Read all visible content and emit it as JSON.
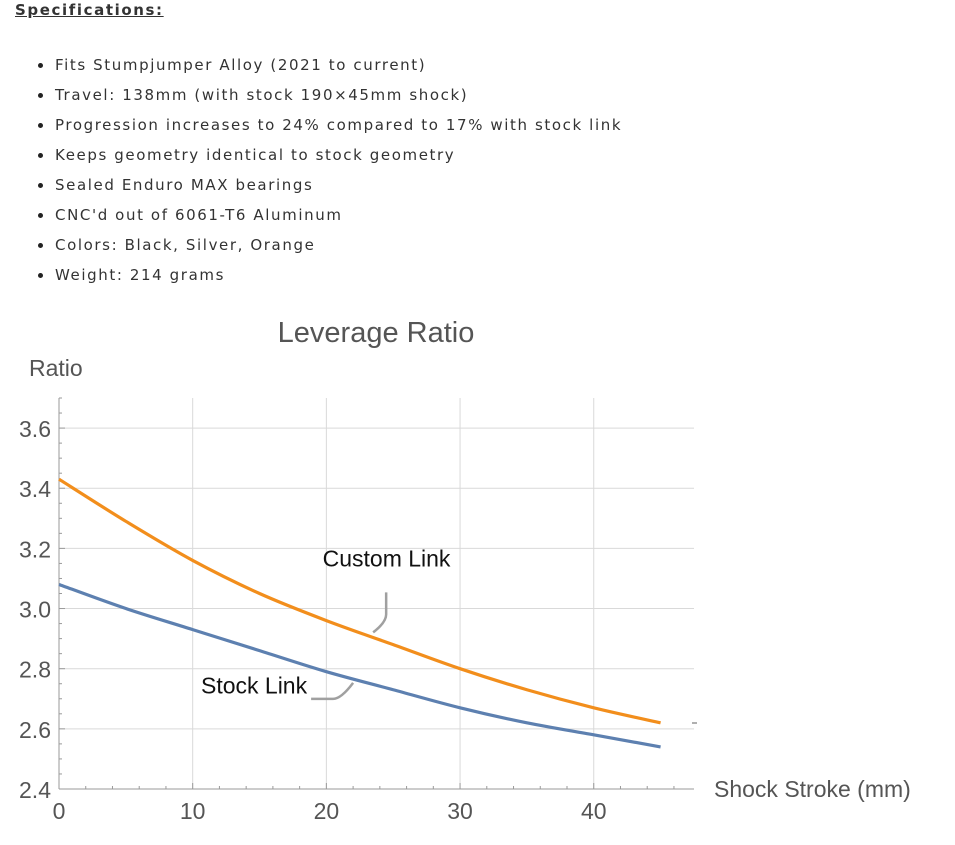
{
  "specs": {
    "heading": "Specifications:",
    "items": [
      "Fits Stumpjumper Alloy (2021 to current)",
      "Travel: 138mm (with stock 190×45mm shock)",
      "Progression increases to 24% compared to 17% with stock link",
      "Keeps geometry identical to stock geometry",
      "Sealed Enduro MAX bearings",
      "CNC'd out of 6061-T6 Aluminum",
      "Colors: Black, Silver, Orange",
      "Weight: 214 grams"
    ]
  },
  "chart_data": {
    "type": "line",
    "title": "Leverage Ratio",
    "xlabel": "Shock Stroke (mm)",
    "ylabel": "Ratio",
    "xlim": [
      0,
      47.5
    ],
    "ylim": [
      2.4,
      3.7
    ],
    "xticks": [
      0,
      10,
      20,
      30,
      40
    ],
    "yticks": [
      2.4,
      2.6,
      2.8,
      3.0,
      3.2,
      3.4,
      3.6
    ],
    "xtick_labels": [
      "0",
      "10",
      "20",
      "30",
      "40"
    ],
    "ytick_labels": [
      "2.4",
      "2.6",
      "2.8",
      "3.0",
      "3.2",
      "3.4",
      "3.6"
    ],
    "grid": true,
    "colors": {
      "custom": "#f28e1c",
      "stock": "#5d80b0",
      "grid": "#d9d9d9",
      "axis": "#9a9a9a",
      "callout": "#a0a0a0"
    },
    "series": [
      {
        "name": "Custom Link",
        "color": "#f28e1c",
        "x": [
          0,
          5,
          10,
          15,
          20,
          25,
          30,
          35,
          40,
          45
        ],
        "y": [
          3.43,
          3.29,
          3.16,
          3.05,
          2.96,
          2.88,
          2.8,
          2.73,
          2.67,
          2.62
        ]
      },
      {
        "name": "Stock Link",
        "color": "#5d80b0",
        "x": [
          0,
          5,
          10,
          15,
          20,
          25,
          30,
          35,
          40,
          45
        ],
        "y": [
          3.08,
          3.0,
          2.93,
          2.86,
          2.79,
          2.73,
          2.67,
          2.62,
          2.58,
          2.54
        ]
      }
    ],
    "annotations": [
      {
        "text": "Custom Link",
        "series": 0,
        "x": 23.5,
        "label_x": 24.5,
        "label_y": 3.11
      },
      {
        "text": "Stock Link",
        "series": 1,
        "x": 22,
        "label_x": 14,
        "label_y": 2.77
      }
    ]
  }
}
